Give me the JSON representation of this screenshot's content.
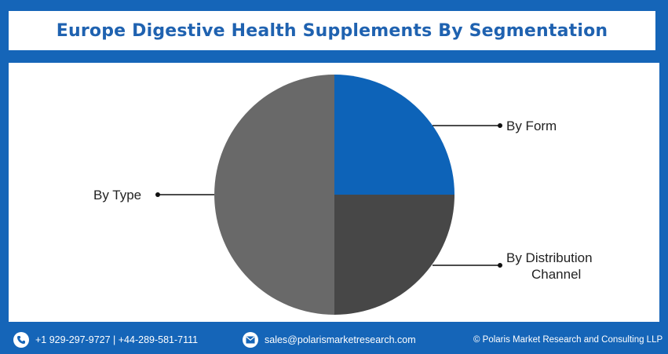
{
  "header": {
    "title": "Europe Digestive Health Supplements By Segmentation"
  },
  "chart_data": {
    "type": "pie",
    "title": "Europe Digestive Health Supplements By Segmentation",
    "slices": [
      {
        "label": "By Form",
        "value": 25,
        "color": "#0d63b8"
      },
      {
        "label": "By Distribution Channel",
        "value": 25,
        "color": "#474747"
      },
      {
        "label": "By Type",
        "value": 50,
        "color": "#696969"
      }
    ],
    "label_lines": {
      "by_form": "By Form",
      "by_distribution_line1": "By Distribution",
      "by_distribution_line2": "Channel",
      "by_type": "By Type"
    }
  },
  "footer": {
    "phone": "+1 929-297-9727 | +44-289-581-7111",
    "email": "sales@polarismarketresearch.com",
    "copyright": "© Polaris Market Research and Consulting LLP",
    "phone_icon": "phone-icon",
    "email_icon": "email-icon"
  }
}
